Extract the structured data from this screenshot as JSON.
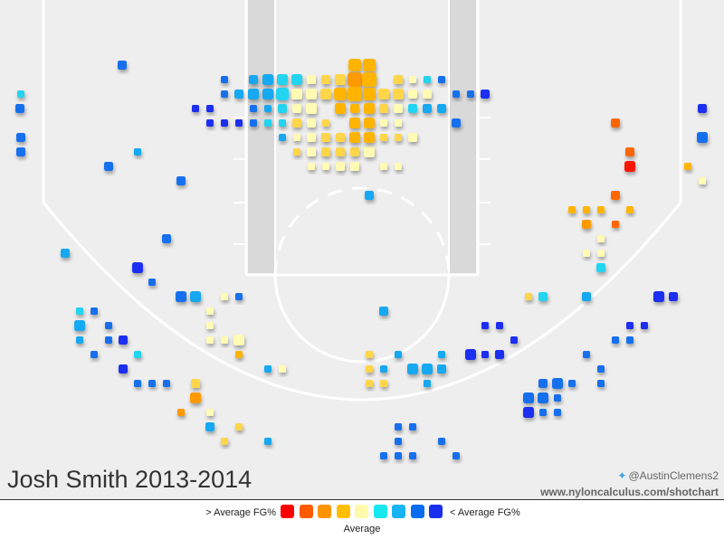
{
  "chart_data": {
    "type": "scatter",
    "title": "Josh Smith 2013-2014",
    "credits": {
      "twitter": "@AustinClemens2",
      "site": "www.nyloncalculus.com/shotchart"
    },
    "legend": {
      "left_label": "> Average FG%",
      "right_label": "< Average FG%",
      "center_label": "Average",
      "colors": [
        "#ff0000",
        "#ff5a00",
        "#ff9400",
        "#ffbf00",
        "#fffaaa",
        "#17e8f0",
        "#17b3f5",
        "#0a6cf0",
        "#1a2fee"
      ]
    },
    "colors": [
      "#ff1500",
      "#ff6600",
      "#ff9900",
      "#ffb400",
      "#ffd54a",
      "#fffab4",
      "#20d4f0",
      "#19a8f0",
      "#1470ee",
      "#1d2ef0"
    ],
    "points": [
      [
        135,
        72,
        3,
        8
      ],
      [
        23,
        104,
        2,
        6
      ],
      [
        22,
        120,
        3,
        8
      ],
      [
        23,
        152,
        3,
        8
      ],
      [
        23,
        168,
        3,
        8
      ],
      [
        152,
        168,
        2,
        7
      ],
      [
        120,
        184,
        3,
        8
      ],
      [
        200,
        200,
        3,
        8
      ],
      [
        184,
        264,
        3,
        8
      ],
      [
        72,
        280,
        3,
        7
      ],
      [
        152,
        296,
        4,
        9
      ],
      [
        168,
        312,
        2,
        8
      ],
      [
        200,
        328,
        4,
        8
      ],
      [
        216,
        328,
        4,
        7
      ],
      [
        248,
        328,
        2,
        5
      ],
      [
        264,
        328,
        2,
        8
      ],
      [
        88,
        344,
        2,
        6
      ],
      [
        104,
        344,
        2,
        8
      ],
      [
        88,
        360,
        4,
        7
      ],
      [
        120,
        360,
        2,
        8
      ],
      [
        232,
        344,
        2,
        5
      ],
      [
        232,
        360,
        2,
        5
      ],
      [
        88,
        376,
        2,
        7
      ],
      [
        120,
        376,
        2,
        8
      ],
      [
        136,
        376,
        3,
        9
      ],
      [
        264,
        376,
        4,
        5
      ],
      [
        248,
        376,
        2,
        5
      ],
      [
        232,
        376,
        2,
        5
      ],
      [
        104,
        392,
        2,
        8
      ],
      [
        152,
        392,
        2,
        6
      ],
      [
        264,
        392,
        2,
        3
      ],
      [
        136,
        408,
        3,
        9
      ],
      [
        296,
        408,
        2,
        7
      ],
      [
        312,
        408,
        2,
        5
      ],
      [
        152,
        424,
        2,
        8
      ],
      [
        168,
        424,
        2,
        8
      ],
      [
        184,
        424,
        2,
        8
      ],
      [
        216,
        424,
        3,
        4
      ],
      [
        216,
        440,
        4,
        2
      ],
      [
        200,
        456,
        2,
        2
      ],
      [
        232,
        456,
        2,
        5
      ],
      [
        232,
        472,
        3,
        7
      ],
      [
        264,
        472,
        2,
        4
      ],
      [
        248,
        488,
        2,
        4
      ],
      [
        296,
        488,
        2,
        7
      ],
      [
        248,
        88,
        2,
        8
      ],
      [
        248,
        104,
        2,
        8
      ],
      [
        264,
        104,
        3,
        7
      ],
      [
        280,
        88,
        3,
        7
      ],
      [
        296,
        88,
        4,
        7
      ],
      [
        280,
        104,
        4,
        7
      ],
      [
        296,
        104,
        4,
        7
      ],
      [
        312,
        88,
        4,
        6
      ],
      [
        312,
        104,
        5,
        6
      ],
      [
        216,
        120,
        2,
        9
      ],
      [
        232,
        120,
        2,
        9
      ],
      [
        280,
        120,
        2,
        8
      ],
      [
        296,
        120,
        2,
        7
      ],
      [
        312,
        120,
        3,
        6
      ],
      [
        232,
        136,
        2,
        9
      ],
      [
        248,
        136,
        2,
        9
      ],
      [
        264,
        136,
        2,
        9
      ],
      [
        280,
        136,
        2,
        8
      ],
      [
        296,
        136,
        2,
        6
      ],
      [
        312,
        136,
        2,
        6
      ],
      [
        312,
        152,
        2,
        7
      ],
      [
        328,
        152,
        2,
        5
      ],
      [
        328,
        168,
        2,
        4
      ],
      [
        344,
        168,
        3,
        5
      ],
      [
        360,
        168,
        3,
        4
      ],
      [
        376,
        168,
        3,
        4
      ],
      [
        392,
        168,
        3,
        4
      ],
      [
        408,
        168,
        4,
        5
      ],
      [
        344,
        184,
        2,
        5
      ],
      [
        360,
        184,
        2,
        5
      ],
      [
        376,
        184,
        3,
        5
      ],
      [
        392,
        184,
        3,
        5
      ],
      [
        424,
        184,
        2,
        5
      ],
      [
        440,
        184,
        2,
        5
      ],
      [
        328,
        88,
        4,
        6
      ],
      [
        328,
        104,
        4,
        5
      ],
      [
        328,
        120,
        3,
        5
      ],
      [
        328,
        136,
        3,
        4
      ],
      [
        344,
        88,
        3,
        5
      ],
      [
        344,
        104,
        4,
        5
      ],
      [
        344,
        120,
        4,
        5
      ],
      [
        344,
        136,
        3,
        5
      ],
      [
        344,
        152,
        3,
        5
      ],
      [
        360,
        88,
        3,
        4
      ],
      [
        360,
        104,
        4,
        4
      ],
      [
        360,
        136,
        2,
        4
      ],
      [
        360,
        152,
        3,
        4
      ],
      [
        376,
        88,
        4,
        4
      ],
      [
        376,
        104,
        5,
        3
      ],
      [
        376,
        120,
        4,
        3
      ],
      [
        376,
        152,
        3,
        4
      ],
      [
        392,
        72,
        5,
        3
      ],
      [
        392,
        88,
        6,
        2
      ],
      [
        392,
        104,
        6,
        3
      ],
      [
        392,
        120,
        3,
        3
      ],
      [
        392,
        136,
        4,
        3
      ],
      [
        392,
        152,
        4,
        3
      ],
      [
        408,
        72,
        5,
        3
      ],
      [
        408,
        88,
        6,
        3
      ],
      [
        408,
        104,
        5,
        3
      ],
      [
        408,
        120,
        4,
        3
      ],
      [
        408,
        136,
        4,
        3
      ],
      [
        408,
        152,
        4,
        3
      ],
      [
        424,
        104,
        4,
        4
      ],
      [
        424,
        120,
        3,
        4
      ],
      [
        424,
        136,
        2,
        5
      ],
      [
        424,
        152,
        2,
        4
      ],
      [
        440,
        88,
        3,
        4
      ],
      [
        440,
        104,
        4,
        4
      ],
      [
        440,
        120,
        3,
        5
      ],
      [
        440,
        136,
        2,
        5
      ],
      [
        440,
        152,
        2,
        4
      ],
      [
        456,
        88,
        2,
        5
      ],
      [
        456,
        104,
        3,
        5
      ],
      [
        456,
        120,
        3,
        6
      ],
      [
        456,
        152,
        3,
        5
      ],
      [
        472,
        88,
        2,
        6
      ],
      [
        472,
        104,
        3,
        5
      ],
      [
        472,
        120,
        3,
        7
      ],
      [
        488,
        88,
        2,
        8
      ],
      [
        488,
        120,
        3,
        7
      ],
      [
        504,
        104,
        2,
        8
      ],
      [
        504,
        136,
        3,
        8
      ],
      [
        520,
        104,
        2,
        8
      ],
      [
        536,
        104,
        3,
        9
      ],
      [
        408,
        216,
        3,
        7
      ],
      [
        680,
        136,
        3,
        1
      ],
      [
        696,
        168,
        3,
        1
      ],
      [
        696,
        184,
        4,
        0
      ],
      [
        680,
        216,
        3,
        1
      ],
      [
        632,
        232,
        2,
        3
      ],
      [
        648,
        232,
        2,
        3
      ],
      [
        664,
        232,
        2,
        3
      ],
      [
        696,
        232,
        2,
        3
      ],
      [
        648,
        248,
        3,
        2
      ],
      [
        680,
        248,
        2,
        1
      ],
      [
        664,
        264,
        2,
        5
      ],
      [
        648,
        280,
        2,
        5
      ],
      [
        664,
        280,
        2,
        5
      ],
      [
        664,
        296,
        3,
        6
      ],
      [
        776,
        120,
        3,
        9
      ],
      [
        776,
        152,
        4,
        8
      ],
      [
        760,
        184,
        2,
        3
      ],
      [
        776,
        200,
        2,
        5
      ],
      [
        584,
        328,
        2,
        4
      ],
      [
        600,
        328,
        3,
        6
      ],
      [
        648,
        328,
        3,
        7
      ],
      [
        728,
        328,
        4,
        9
      ],
      [
        744,
        328,
        3,
        9
      ],
      [
        696,
        360,
        2,
        9
      ],
      [
        712,
        360,
        2,
        9
      ],
      [
        552,
        360,
        2,
        9
      ],
      [
        536,
        360,
        2,
        9
      ],
      [
        568,
        376,
        2,
        9
      ],
      [
        680,
        376,
        2,
        8
      ],
      [
        696,
        376,
        2,
        8
      ],
      [
        520,
        392,
        4,
        9
      ],
      [
        536,
        392,
        2,
        9
      ],
      [
        552,
        392,
        3,
        9
      ],
      [
        648,
        392,
        2,
        8
      ],
      [
        664,
        408,
        2,
        8
      ],
      [
        456,
        408,
        4,
        7
      ],
      [
        472,
        408,
        4,
        7
      ],
      [
        488,
        408,
        3,
        7
      ],
      [
        408,
        392,
        2,
        4
      ],
      [
        408,
        408,
        2,
        4
      ],
      [
        424,
        408,
        2,
        7
      ],
      [
        440,
        392,
        2,
        7
      ],
      [
        488,
        392,
        2,
        7
      ],
      [
        472,
        424,
        2,
        7
      ],
      [
        408,
        424,
        2,
        4
      ],
      [
        424,
        424,
        2,
        4
      ],
      [
        616,
        424,
        4,
        8
      ],
      [
        600,
        424,
        3,
        8
      ],
      [
        632,
        424,
        2,
        8
      ],
      [
        664,
        424,
        2,
        8
      ],
      [
        584,
        440,
        4,
        8
      ],
      [
        600,
        440,
        4,
        8
      ],
      [
        616,
        440,
        2,
        8
      ],
      [
        584,
        456,
        4,
        9
      ],
      [
        600,
        456,
        2,
        8
      ],
      [
        616,
        456,
        2,
        8
      ],
      [
        440,
        472,
        2,
        8
      ],
      [
        456,
        472,
        2,
        8
      ],
      [
        440,
        488,
        2,
        8
      ],
      [
        488,
        488,
        2,
        8
      ],
      [
        424,
        504,
        2,
        8
      ],
      [
        440,
        504,
        2,
        8
      ],
      [
        456,
        504,
        2,
        8
      ],
      [
        504,
        504,
        2,
        8
      ],
      [
        424,
        344,
        3,
        7
      ]
    ]
  }
}
